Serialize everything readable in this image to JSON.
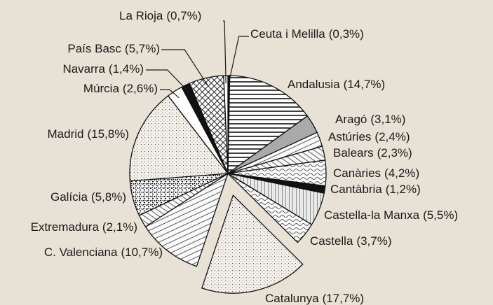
{
  "chart_data": {
    "type": "pie",
    "categories": [
      "Ceuta i Melilla",
      "Andalusia",
      "Aragó",
      "Astúries",
      "Balears",
      "Canàries",
      "Cantàbria",
      "Castella-la Manxa",
      "Castella",
      "Catalunya",
      "C. Valenciana",
      "Extremadura",
      "Galícia",
      "Madrid",
      "Múrcia",
      "Navarra",
      "País Basc",
      "La Rioja"
    ],
    "values": [
      0.3,
      14.7,
      3.1,
      2.4,
      2.3,
      4.2,
      1.2,
      5.5,
      3.7,
      17.7,
      10.7,
      2.1,
      5.8,
      15.8,
      2.6,
      1.4,
      5.7,
      0.7
    ],
    "value_labels": [
      "(0,3%)",
      "(14,7%)",
      "(3,1%)",
      "(2,4%)",
      "(2,3%)",
      "(4,2%)",
      "(1,2%)",
      "(5,5%)",
      "(3,7%)",
      "(17,7%)",
      "(10,7%)",
      "(2,1%)",
      "(5,8%)",
      "(15,8%)",
      "(2,6%)",
      "(1,4%)",
      "(5,7%)",
      "(0,7%)"
    ]
  }
}
